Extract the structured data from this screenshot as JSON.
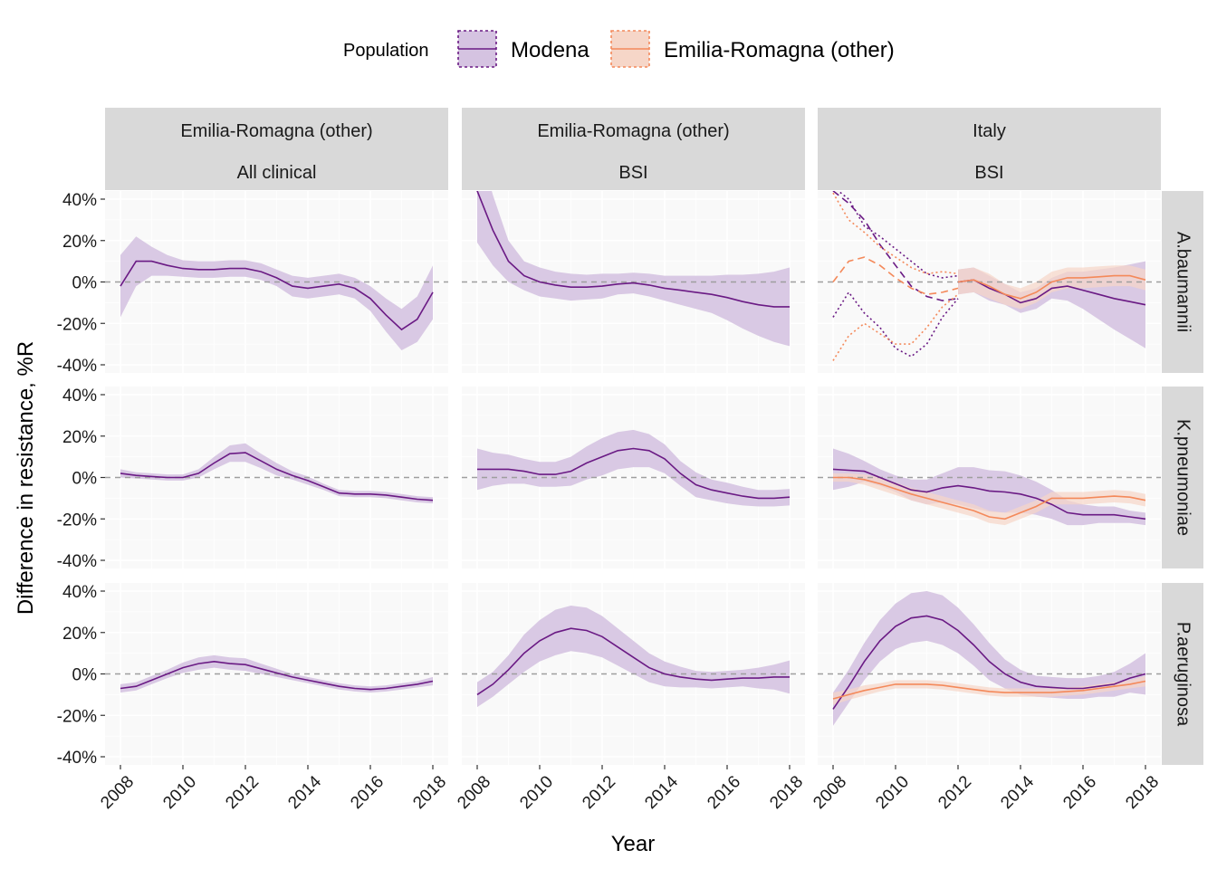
{
  "chart_data": {
    "type": "line",
    "xlabel": "Year",
    "ylabel": "Difference in resistance, %R",
    "xlim": [
      2008,
      2018
    ],
    "ylim": [
      -40,
      40
    ],
    "x_ticks": [
      2008,
      2010,
      2012,
      2014,
      2016,
      2018
    ],
    "x_tick_labels": [
      "2008",
      "2010",
      "2012",
      "2014",
      "2016",
      "2018"
    ],
    "y_ticks": [
      -40,
      -20,
      0,
      20,
      40
    ],
    "y_tick_labels": [
      "-40%",
      "-20%",
      "0%",
      "20%",
      "40%"
    ],
    "reference_line": 0,
    "grid": true,
    "legend": {
      "title": "Population",
      "position": "top",
      "entries": [
        {
          "name": "Modena",
          "color": "#6a1a84",
          "fill": "#d5c3e1"
        },
        {
          "name": "Emilia-Romagna (other)",
          "color": "#f4895a",
          "fill": "#f6d6c8"
        }
      ]
    },
    "columns": [
      {
        "label_top": "Emilia-Romagna (other)",
        "label_bottom": "All clinical"
      },
      {
        "label_top": "Emilia-Romagna (other)",
        "label_bottom": "BSI"
      },
      {
        "label_top": "Italy",
        "label_bottom": "BSI"
      }
    ],
    "rows": [
      "A.baumannii",
      "K.pneumoniae",
      "P.aeruginosa"
    ],
    "x": [
      2008,
      2008.5,
      2009,
      2009.5,
      2010,
      2010.5,
      2011,
      2011.5,
      2012,
      2012.5,
      2013,
      2013.5,
      2014,
      2014.5,
      2015,
      2015.5,
      2016,
      2016.5,
      2017,
      2017.5,
      2018
    ],
    "panels": [
      {
        "row": 0,
        "col": 0,
        "series": [
          {
            "name": "Modena",
            "values": [
              -2,
              10,
              10,
              8,
              6.5,
              6,
              6,
              6.5,
              6.5,
              5,
              2,
              -2,
              -3,
              -2,
              -1,
              -3,
              -8,
              -16,
              -23,
              -18,
              -5
            ],
            "ci": [
              15,
              12,
              7,
              5,
              4,
              4,
              4,
              4,
              4,
              4,
              4,
              5,
              5,
              5,
              5,
              5,
              6,
              8,
              10,
              11,
              13
            ]
          }
        ]
      },
      {
        "row": 0,
        "col": 1,
        "series": [
          {
            "name": "Modena",
            "values": [
              44,
              25,
              10,
              3,
              0,
              -1.5,
              -2.5,
              -2.5,
              -2,
              -1,
              -0.5,
              -1.5,
              -3,
              -4,
              -5,
              -6,
              -7.5,
              -9.5,
              -11,
              -12,
              -12
            ],
            "ci": [
              25,
              17,
              10,
              7,
              7,
              6.5,
              6.5,
              6,
              6,
              5,
              5,
              5.5,
              6,
              7,
              8,
              9,
              11,
              13,
              15,
              17,
              19
            ]
          }
        ]
      },
      {
        "row": 0,
        "col": 2,
        "series": [
          {
            "name": "Modena",
            "values": [
              null,
              null,
              null,
              null,
              null,
              null,
              null,
              null,
              0,
              1,
              -3,
              -6,
              -10,
              -8,
              -3,
              -2,
              -4,
              -6,
              -8,
              -9.5,
              -11
            ],
            "ci": [
              null,
              null,
              null,
              null,
              null,
              null,
              null,
              null,
              6,
              6,
              6,
              5,
              5,
              5,
              5,
              7,
              9,
              12,
              15,
              18,
              21
            ],
            "values_pre": [
              44,
              38,
              30,
              18,
              8,
              -2,
              -7,
              -9,
              -8
            ],
            "upper_pre": [
              46,
              40,
              27,
              22,
              16,
              10,
              4,
              2,
              3
            ],
            "lower_pre": [
              -17,
              -5,
              -15,
              -22,
              -32,
              -36,
              -30,
              -17,
              -8
            ]
          },
          {
            "name": "Emilia-Romagna (other)",
            "values": [
              null,
              null,
              null,
              null,
              null,
              null,
              null,
              null,
              0,
              1,
              -2,
              -6,
              -8,
              -5,
              0,
              2,
              2,
              2.5,
              3,
              3,
              1
            ],
            "ci": [
              null,
              null,
              null,
              null,
              null,
              null,
              null,
              null,
              6,
              6,
              6,
              5,
              5,
              5,
              5,
              5,
              5,
              5,
              5,
              5,
              5
            ],
            "values_pre": [
              0,
              10,
              12,
              8,
              2,
              -3,
              -6,
              -5,
              -3
            ],
            "upper_pre": [
              43,
              30,
              24,
              17,
              12,
              7,
              4,
              5,
              4
            ],
            "lower_pre": [
              -38,
              -26,
              -20,
              -25,
              -30,
              -30,
              -22,
              -12,
              -6
            ]
          }
        ]
      },
      {
        "row": 1,
        "col": 0,
        "series": [
          {
            "name": "Modena",
            "values": [
              2,
              1,
              0.5,
              0,
              0,
              2,
              7,
              11.5,
              12,
              8,
              4,
              1,
              -1.5,
              -4.5,
              -7.5,
              -8,
              -8,
              -8.5,
              -9.5,
              -10.5,
              -11
            ],
            "ci": [
              2,
              1.5,
              1.5,
              1.5,
              1.5,
              2,
              3,
              4,
              4.5,
              3.5,
              3,
              2,
              2,
              1.5,
              1.5,
              1.5,
              1.5,
              1.5,
              1.5,
              1.5,
              1.5
            ]
          }
        ]
      },
      {
        "row": 1,
        "col": 1,
        "series": [
          {
            "name": "Modena",
            "values": [
              4,
              4,
              4,
              3,
              1.5,
              1.5,
              3,
              7,
              10,
              13,
              14,
              13,
              9,
              2,
              -3.5,
              -6,
              -7.5,
              -9,
              -10,
              -10,
              -9.5
            ],
            "ci": [
              10,
              8,
              7,
              6,
              6,
              6,
              7,
              8,
              9,
              9,
              9,
              8,
              7,
              6,
              6,
              5,
              5,
              4.5,
              4,
              4,
              4
            ]
          }
        ]
      },
      {
        "row": 1,
        "col": 2,
        "series": [
          {
            "name": "Modena",
            "values": [
              4,
              3.5,
              3,
              0,
              -3,
              -6,
              -7,
              -5,
              -4,
              -5,
              -6.5,
              -7,
              -8,
              -10,
              -13,
              -17,
              -18,
              -18,
              -18,
              -19,
              -20
            ],
            "ci": [
              10,
              8,
              5,
              4,
              4,
              5,
              6,
              7,
              9,
              10,
              10,
              10,
              9,
              8,
              7,
              6,
              5,
              4,
              4,
              3,
              3
            ]
          },
          {
            "name": "Emilia-Romagna (other)",
            "values": [
              0,
              0,
              -1,
              -3,
              -5.5,
              -8,
              -10,
              -12,
              -14,
              -16,
              -19,
              -20,
              -17,
              -14,
              -10,
              -10,
              -10,
              -9.5,
              -9,
              -9.5,
              -11
            ],
            "ci": [
              2,
              2,
              2.5,
              3,
              3,
              3,
              3,
              3,
              3,
              3,
              3,
              3,
              3,
              3,
              3,
              3,
              3,
              3,
              3,
              3,
              3
            ]
          }
        ]
      },
      {
        "row": 2,
        "col": 0,
        "series": [
          {
            "name": "Modena",
            "values": [
              -7,
              -6,
              -3,
              0,
              3,
              5,
              6,
              5,
              4.5,
              2.5,
              0.5,
              -1.5,
              -3,
              -4.5,
              -6,
              -7,
              -7.5,
              -7,
              -6,
              -5,
              -3.5
            ],
            "ci": [
              2,
              2,
              2,
              2,
              2.5,
              3,
              3,
              3,
              3,
              2.5,
              2,
              1.5,
              1.5,
              1.5,
              1.5,
              1.5,
              1.5,
              1.5,
              1.5,
              1.5,
              2
            ]
          }
        ]
      },
      {
        "row": 2,
        "col": 1,
        "series": [
          {
            "name": "Modena",
            "values": [
              -10,
              -5,
              2,
              10,
              16,
              20,
              22,
              21,
              18,
              13,
              8,
              3,
              0,
              -1.5,
              -2.5,
              -3,
              -2.5,
              -2,
              -2,
              -1.5,
              -1.5
            ],
            "ci": [
              6,
              6,
              7,
              9,
              10,
              11,
              11,
              11,
              10,
              9,
              8,
              7,
              6,
              5,
              4,
              4,
              4,
              4,
              5,
              6,
              8
            ]
          }
        ]
      },
      {
        "row": 2,
        "col": 2,
        "series": [
          {
            "name": "Modena",
            "values": [
              -17,
              -6,
              6,
              16,
              23,
              27,
              28,
              26,
              21,
              14,
              6,
              0,
              -4,
              -6,
              -6.5,
              -7,
              -7,
              -6,
              -5,
              -2,
              0
            ],
            "ci": [
              8,
              8,
              9,
              10,
              11,
              12,
              12,
              12,
              11,
              10,
              9,
              7,
              6,
              5,
              5,
              5,
              5,
              5,
              6,
              7,
              10
            ]
          },
          {
            "name": "Emilia-Romagna (other)",
            "values": [
              -12,
              -10,
              -8,
              -6.5,
              -5,
              -5,
              -5,
              -5.5,
              -6.5,
              -7.5,
              -8.5,
              -9,
              -9,
              -9,
              -9,
              -8.5,
              -8,
              -7,
              -6,
              -5,
              -3.5
            ],
            "ci": [
              3,
              2.5,
              2.5,
              2,
              2,
              2,
              2,
              2,
              2,
              2,
              2,
              2,
              2,
              2,
              2,
              2,
              2,
              2,
              2,
              2,
              2.5
            ]
          }
        ]
      }
    ]
  }
}
